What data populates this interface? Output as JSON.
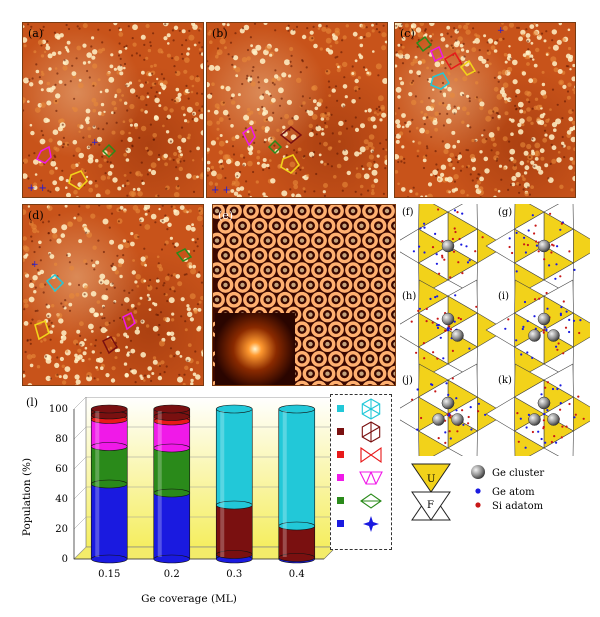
{
  "panels": {
    "a": "(a)",
    "b": "(b)",
    "c": "(c)",
    "d": "(d)",
    "e": "(e)",
    "f": "(f)",
    "g": "(g)",
    "h": "(h)",
    "i": "(i)",
    "j": "(j)",
    "k": "(k)",
    "l": "(l)"
  },
  "colors": {
    "stm_base": "#c8531a",
    "stm_bright": "#fff2c8",
    "triangle_yellow": "#f2d21a",
    "cyan": "#22c8d8",
    "maroon": "#7a1010",
    "red": "#e8191a",
    "magenta": "#f019e8",
    "green": "#2a8a1a",
    "blue": "#1a1ae0"
  },
  "structure_key": {
    "u_label": "U",
    "f_label": "F",
    "items": [
      {
        "swatch": "#22c8d8",
        "icon": "hexagon-6-triangles-icon"
      },
      {
        "swatch": "#7a1010",
        "icon": "hexagon-4-triangles-icon"
      },
      {
        "swatch": "#e8191a",
        "icon": "bowtie-icon"
      },
      {
        "swatch": "#f019e8",
        "icon": "trapezoid-icon"
      },
      {
        "swatch": "#2a8a1a",
        "icon": "diamond-icon"
      },
      {
        "swatch": "#1a1ae0",
        "icon": "star-icon"
      }
    ],
    "legend": [
      {
        "icon": "ge-cluster-icon",
        "label": "Ge cluster"
      },
      {
        "icon": "ge-atom-icon",
        "label": "Ge atom"
      },
      {
        "icon": "si-adatom-icon",
        "label": "Si adatom"
      }
    ]
  },
  "chart_data": {
    "type": "bar",
    "stacked": true,
    "xlabel": "Ge coverage (ML)",
    "ylabel": "Population (%)",
    "ylim": [
      0,
      100
    ],
    "yticks": [
      0,
      20,
      40,
      60,
      80,
      100
    ],
    "categories": [
      "0.15",
      "0.2",
      "0.3",
      "0.4"
    ],
    "series": [
      {
        "color": "#1a1ae0",
        "values": [
          50,
          44,
          3,
          1
        ]
      },
      {
        "color": "#2a8a1a",
        "values": [
          25,
          30,
          0,
          0
        ]
      },
      {
        "color": "#f019e8",
        "values": [
          18,
          18,
          0,
          0
        ]
      },
      {
        "color": "#e8191a",
        "values": [
          3,
          3,
          0,
          0
        ]
      },
      {
        "color": "#7a1010",
        "values": [
          4,
          5,
          33,
          21
        ]
      },
      {
        "color": "#22c8d8",
        "values": [
          0,
          0,
          64,
          78
        ]
      }
    ]
  }
}
